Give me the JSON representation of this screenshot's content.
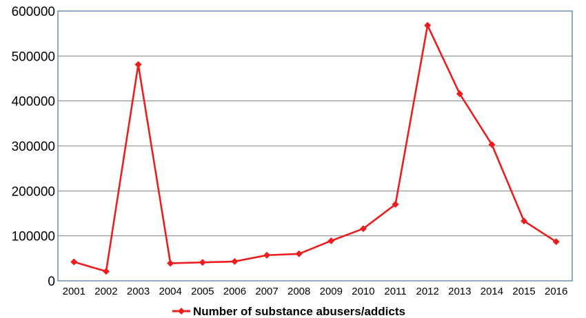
{
  "chart_data": {
    "type": "line",
    "x": [
      "2001",
      "2002",
      "2003",
      "2004",
      "2005",
      "2006",
      "2007",
      "2008",
      "2009",
      "2010",
      "2011",
      "2012",
      "2013",
      "2014",
      "2015",
      "2016"
    ],
    "series": [
      {
        "name": "Number of substance abusers/addicts",
        "values": [
          42000,
          21000,
          481000,
          39000,
          41000,
          43000,
          57000,
          60000,
          89000,
          116000,
          170000,
          568000,
          416000,
          303000,
          133000,
          87000
        ]
      }
    ],
    "ylim": [
      0,
      600000
    ],
    "yticks": [
      "0",
      "100000",
      "200000",
      "300000",
      "400000",
      "500000",
      "600000"
    ],
    "grid": "horizontal",
    "legend": "bottom",
    "marker": "diamond",
    "colors": {
      "line": "#ee1c1c",
      "grid": "#7f7f7f",
      "frame": "#4a6fa5"
    }
  }
}
